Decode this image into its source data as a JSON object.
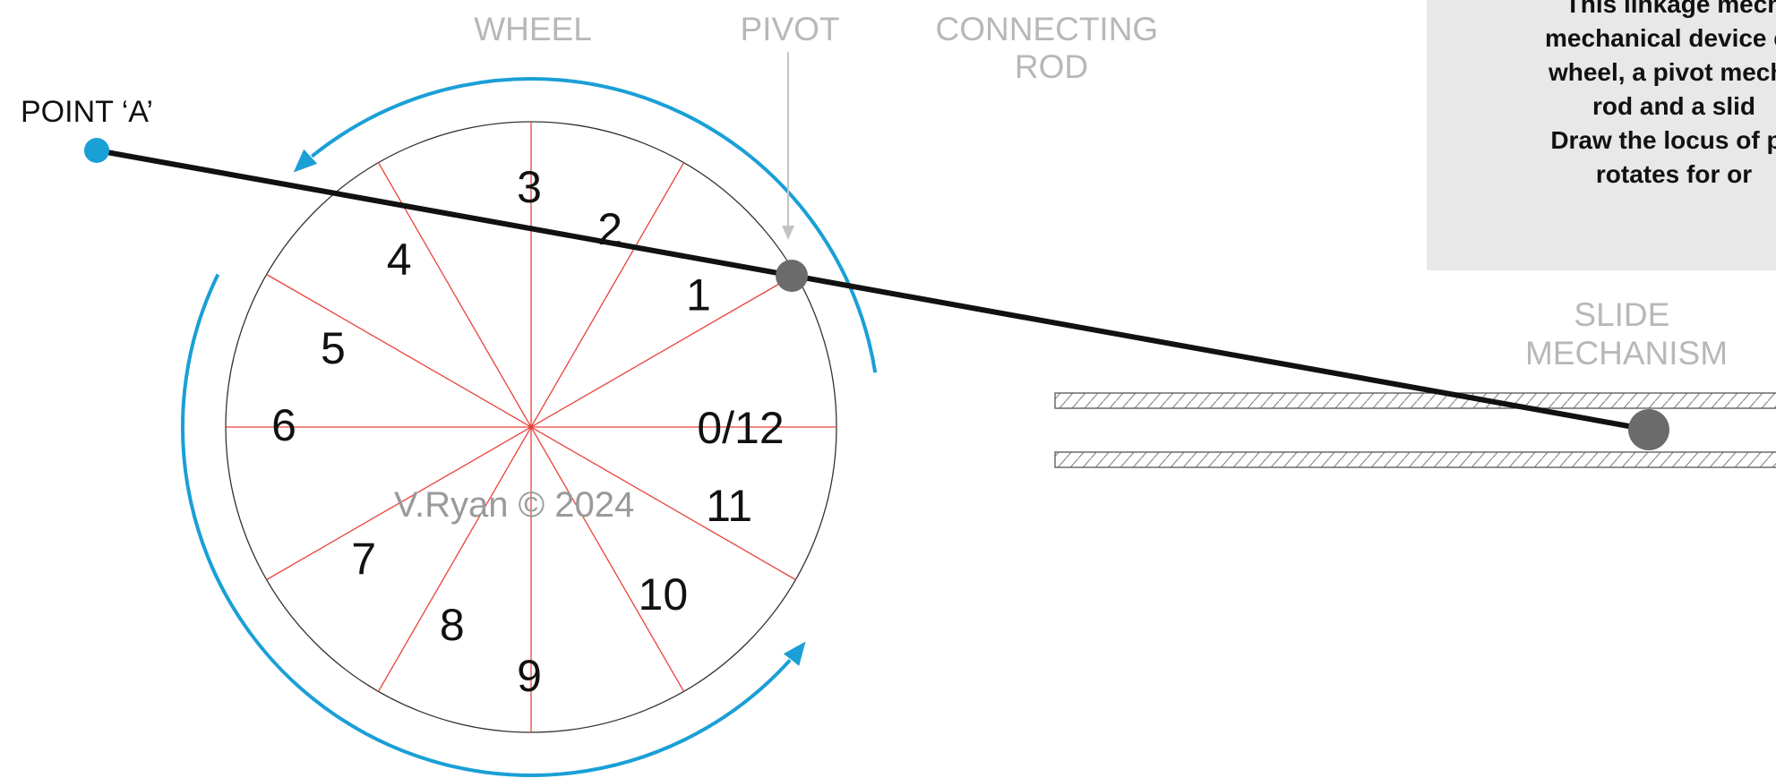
{
  "labels": {
    "wheel": "WHEEL",
    "pivot": "PIVOT",
    "connecting_rod": [
      "CONNECTING",
      "ROD"
    ],
    "point_a": "POINT ‘A’",
    "slide_mechanism": [
      "SLIDE",
      "MECHANISM"
    ],
    "watermark": "V.Ryan © 2024"
  },
  "wheel_positions": [
    "0/12",
    "1",
    "2",
    "3",
    "4",
    "5",
    "6",
    "7",
    "8",
    "9",
    "10",
    "11"
  ],
  "instruction_box": {
    "lines": [
      "This linkage mech",
      "mechanical device co",
      "wheel, a pivot mecha",
      "rod and a slid",
      "Draw the locus of po",
      "rotates for or"
    ]
  },
  "colors": {
    "arrow": "#1a9fd6",
    "divider": "#e8423a",
    "rod": "#111111",
    "pivot_joint": "#6b6b6b",
    "point_a": "#1a9fd6",
    "label_grey": "#b8b8b8",
    "instruction_bg": "#e8e8e8"
  }
}
